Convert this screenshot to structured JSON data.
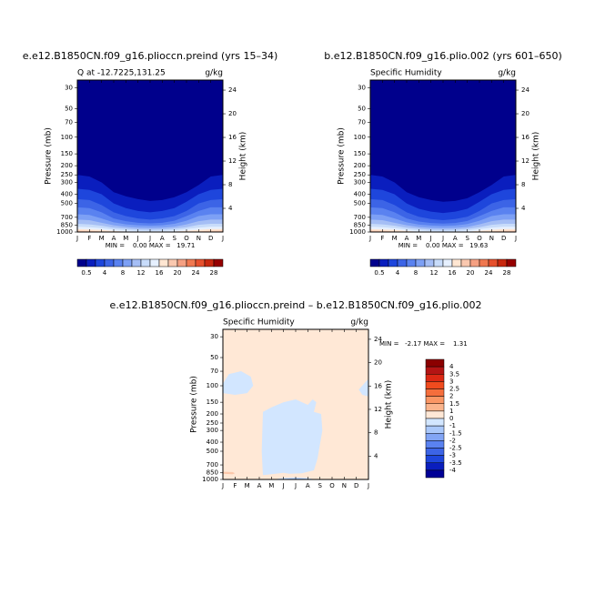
{
  "chart_data": [
    {
      "type": "contour",
      "title": "e.e12.B1850CN.f09_g16.plioccn.preind (yrs 15–34)",
      "subtitle": "Q at -12.7225,131.25",
      "units": "g/kg",
      "ylabel": "Pressure (mb)",
      "y2label": "Height (km)",
      "stats": "MIN =    0.00 MAX =   19.71",
      "categories": [
        "J",
        "F",
        "M",
        "A",
        "M",
        "J",
        "J",
        "A",
        "S",
        "O",
        "N",
        "D",
        "J"
      ],
      "ylim": [
        1000,
        25
      ],
      "log_y": true,
      "yticks": [
        30,
        50,
        70,
        100,
        150,
        200,
        250,
        300,
        400,
        500,
        700,
        850,
        1000
      ],
      "y2lim": [
        0,
        25.7
      ],
      "y2ticks": [
        4,
        8,
        12,
        16,
        20,
        24
      ],
      "background": "#00008c",
      "contours": [
        {
          "color": "#0a1ebe",
          "values": [
            250,
            260,
            300,
            380,
            420,
            450,
            470,
            460,
            430,
            380,
            320,
            260,
            250
          ]
        },
        {
          "color": "#1e46dc",
          "values": [
            350,
            360,
            400,
            500,
            560,
            600,
            620,
            600,
            560,
            480,
            400,
            360,
            350
          ]
        },
        {
          "color": "#3c64e6",
          "values": [
            450,
            460,
            520,
            620,
            680,
            720,
            740,
            720,
            680,
            600,
            500,
            460,
            450
          ]
        },
        {
          "color": "#5a82f0",
          "values": [
            550,
            560,
            620,
            720,
            770,
            800,
            810,
            800,
            760,
            680,
            600,
            550,
            550
          ]
        },
        {
          "color": "#7da0f5",
          "values": [
            650,
            660,
            720,
            790,
            830,
            850,
            860,
            850,
            820,
            760,
            680,
            650,
            650
          ]
        },
        {
          "color": "#a5bef5",
          "values": [
            740,
            750,
            800,
            850,
            880,
            900,
            905,
            900,
            880,
            830,
            770,
            740,
            740
          ]
        },
        {
          "color": "#c8dcfa",
          "values": [
            820,
            830,
            860,
            900,
            920,
            940,
            945,
            940,
            920,
            890,
            840,
            820,
            820
          ]
        },
        {
          "color": "#e6f0ff",
          "values": [
            880,
            890,
            910,
            940,
            960,
            975,
            980,
            975,
            960,
            930,
            900,
            880,
            880
          ]
        },
        {
          "color": "#ffe6d2",
          "values": [
            930,
            940,
            950,
            975,
            990,
            1000,
            1000,
            1000,
            990,
            970,
            950,
            930,
            930
          ]
        },
        {
          "color": "#fac8af",
          "values": [
            965,
            970,
            985,
            1000,
            1000,
            1000,
            1000,
            1000,
            1000,
            1000,
            985,
            970,
            965
          ]
        }
      ],
      "colorbar": {
        "orientation": "horizontal",
        "colors": [
          "#00008c",
          "#0a1ebe",
          "#1e46dc",
          "#3c64e6",
          "#5a82f0",
          "#7da0f5",
          "#a5bef5",
          "#c8dcfa",
          "#e6f0ff",
          "#ffe6d2",
          "#fac8af",
          "#f5a082",
          "#f07850",
          "#e6502d",
          "#c8280f",
          "#960000"
        ],
        "ticks": [
          0.5,
          4,
          8,
          12,
          16,
          20,
          24,
          28
        ]
      }
    },
    {
      "type": "contour",
      "title": "b.e12.B1850CN.f09_g16.plio.002 (yrs 601–650)",
      "subtitle": "Specific Humidity",
      "units": "g/kg",
      "ylabel": "Pressure (mb)",
      "y2label": "Height (km)",
      "stats": "MIN =    0.00 MAX =   19.63",
      "categories": [
        "J",
        "F",
        "M",
        "A",
        "M",
        "J",
        "J",
        "A",
        "S",
        "O",
        "N",
        "D",
        "J"
      ],
      "ylim": [
        1000,
        25
      ],
      "log_y": true,
      "yticks": [
        30,
        50,
        70,
        100,
        150,
        200,
        250,
        300,
        400,
        500,
        700,
        850,
        1000
      ],
      "y2lim": [
        0,
        25.7
      ],
      "y2ticks": [
        4,
        8,
        12,
        16,
        20,
        24
      ],
      "background": "#00008c",
      "contours": [
        {
          "color": "#0a1ebe",
          "values": [
            250,
            260,
            300,
            380,
            430,
            460,
            480,
            470,
            440,
            380,
            320,
            260,
            250
          ]
        },
        {
          "color": "#1e46dc",
          "values": [
            350,
            360,
            400,
            500,
            570,
            610,
            630,
            610,
            570,
            480,
            400,
            360,
            350
          ]
        },
        {
          "color": "#3c64e6",
          "values": [
            450,
            460,
            520,
            620,
            690,
            730,
            750,
            730,
            690,
            600,
            500,
            460,
            450
          ]
        },
        {
          "color": "#5a82f0",
          "values": [
            550,
            560,
            620,
            720,
            775,
            805,
            815,
            805,
            765,
            680,
            600,
            550,
            550
          ]
        },
        {
          "color": "#7da0f5",
          "values": [
            650,
            660,
            720,
            790,
            835,
            855,
            865,
            855,
            825,
            760,
            680,
            650,
            650
          ]
        },
        {
          "color": "#a5bef5",
          "values": [
            740,
            750,
            800,
            850,
            885,
            905,
            910,
            905,
            885,
            830,
            770,
            740,
            740
          ]
        },
        {
          "color": "#c8dcfa",
          "values": [
            820,
            830,
            860,
            900,
            925,
            945,
            950,
            945,
            925,
            890,
            840,
            820,
            820
          ]
        },
        {
          "color": "#e6f0ff",
          "values": [
            880,
            890,
            910,
            940,
            965,
            980,
            985,
            980,
            965,
            930,
            900,
            880,
            880
          ]
        },
        {
          "color": "#ffe6d2",
          "values": [
            930,
            940,
            950,
            975,
            995,
            1000,
            1000,
            1000,
            995,
            970,
            950,
            930,
            930
          ]
        },
        {
          "color": "#fac8af",
          "values": [
            965,
            970,
            985,
            1000,
            1000,
            1000,
            1000,
            1000,
            1000,
            1000,
            985,
            970,
            965
          ]
        }
      ],
      "colorbar": {
        "orientation": "horizontal",
        "colors": [
          "#00008c",
          "#0a1ebe",
          "#1e46dc",
          "#3c64e6",
          "#5a82f0",
          "#7da0f5",
          "#a5bef5",
          "#c8dcfa",
          "#e6f0ff",
          "#ffe6d2",
          "#fac8af",
          "#f5a082",
          "#f07850",
          "#e6502d",
          "#c8280f",
          "#960000"
        ],
        "ticks": [
          0.5,
          4,
          8,
          12,
          16,
          20,
          24,
          28
        ]
      }
    },
    {
      "type": "contour",
      "title": "e.e12.B1850CN.f09_g16.plioccn.preind – b.e12.B1850CN.f09_g16.plio.002",
      "subtitle": "Specific Humidity",
      "units": "g/kg",
      "ylabel": "Pressure (mb)",
      "y2label": "Height (km)",
      "stats": "MIN =   -2.17 MAX =    1.31",
      "categories": [
        "J",
        "F",
        "M",
        "A",
        "M",
        "J",
        "J",
        "A",
        "S",
        "O",
        "N",
        "D",
        "J"
      ],
      "ylim": [
        1000,
        25
      ],
      "log_y": true,
      "yticks": [
        30,
        50,
        70,
        100,
        150,
        200,
        250,
        300,
        400,
        500,
        700,
        850,
        1000
      ],
      "y2lim": [
        0,
        25.7
      ],
      "y2ticks": [
        4,
        8,
        12,
        16,
        20,
        24
      ],
      "background": "#ffe8d6",
      "regions": [
        {
          "color": "#d2e6ff",
          "x": [
            0,
            0.5,
            1.5,
            2.3,
            2.5,
            2,
            1,
            0
          ],
          "y": [
            95,
            75,
            70,
            80,
            100,
            120,
            125,
            120
          ]
        },
        {
          "color": "#d2e6ff",
          "x": [
            3.3,
            4,
            5,
            5.5,
            6.5,
            7.5,
            7.8,
            8.2,
            8.1,
            7.5,
            7.7,
            7.4,
            7,
            6,
            5,
            4,
            3.3,
            3.2
          ],
          "y": [
            900,
            880,
            850,
            870,
            860,
            800,
            600,
            300,
            200,
            190,
            150,
            140,
            160,
            140,
            150,
            170,
            190,
            500
          ]
        },
        {
          "color": "#d2e6ff",
          "x": [
            11.2,
            11.8,
            12,
            12,
            11.5
          ],
          "y": [
            110,
            90,
            85,
            130,
            125
          ]
        },
        {
          "color": "#d2e6ff",
          "x": [
            4.2,
            5,
            6,
            7,
            7.6,
            6,
            5
          ],
          "y": [
            1000,
            960,
            950,
            965,
            1000,
            1000,
            1000
          ]
        },
        {
          "color": "#aac8fa",
          "x": [
            4.8,
            5.5,
            6.3,
            7,
            6,
            5.5
          ],
          "y": [
            1000,
            975,
            970,
            985,
            1000,
            1000
          ]
        },
        {
          "color": "#fcc8aa",
          "x": [
            0,
            0.8,
            1,
            0.8,
            0
          ],
          "y": [
            830,
            835,
            860,
            880,
            870
          ]
        }
      ],
      "colorbar": {
        "orientation": "vertical",
        "colors": [
          "#8b0000",
          "#b41414",
          "#dc2814",
          "#f04b1e",
          "#f56e3c",
          "#fa9664",
          "#fab48c",
          "#ffe8d6",
          "#d2e6ff",
          "#aac8fa",
          "#82a5f5",
          "#5a82f0",
          "#3c64e6",
          "#1e46dc",
          "#0a1ebe",
          "#000096"
        ],
        "ticks": [
          4,
          3.5,
          3,
          2.5,
          2,
          1.5,
          1,
          0,
          -1,
          -1.5,
          -2,
          -2.5,
          -3,
          -3.5,
          -4
        ]
      }
    }
  ]
}
